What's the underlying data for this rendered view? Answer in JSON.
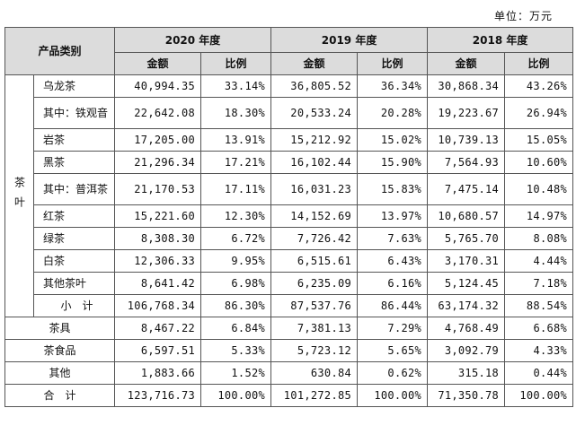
{
  "unit_label": "单位：万元",
  "header": {
    "category": "产品类别",
    "years": [
      "2020 年度",
      "2019 年度",
      "2018 年度"
    ],
    "amount": "金额",
    "ratio": "比例"
  },
  "tea_group_label": "茶叶",
  "tea_rows": [
    {
      "name": "乌龙茶",
      "v": [
        "40,994.35",
        "33.14%",
        "36,805.52",
        "36.34%",
        "30,868.34",
        "43.26%"
      ]
    },
    {
      "name": "其中：铁观音",
      "v": [
        "22,642.08",
        "18.30%",
        "20,533.24",
        "20.28%",
        "19,223.67",
        "26.94%"
      ]
    },
    {
      "name": "岩茶",
      "v": [
        "17,205.00",
        "13.91%",
        "15,212.92",
        "15.02%",
        "10,739.13",
        "15.05%"
      ]
    },
    {
      "name": "黑茶",
      "v": [
        "21,296.34",
        "17.21%",
        "16,102.44",
        "15.90%",
        "7,564.93",
        "10.60%"
      ]
    },
    {
      "name": "其中：普洱茶",
      "v": [
        "21,170.53",
        "17.11%",
        "16,031.23",
        "15.83%",
        "7,475.14",
        "10.48%"
      ]
    },
    {
      "name": "红茶",
      "v": [
        "15,221.60",
        "12.30%",
        "14,152.69",
        "13.97%",
        "10,680.57",
        "14.97%"
      ]
    },
    {
      "name": "绿茶",
      "v": [
        "8,308.30",
        "6.72%",
        "7,726.42",
        "7.63%",
        "5,765.70",
        "8.08%"
      ]
    },
    {
      "name": "白茶",
      "v": [
        "12,306.33",
        "9.95%",
        "6,515.61",
        "6.43%",
        "3,170.31",
        "4.44%"
      ]
    },
    {
      "name": "其他茶叶",
      "v": [
        "8,641.42",
        "6.98%",
        "6,235.09",
        "6.16%",
        "5,124.45",
        "7.18%"
      ]
    },
    {
      "name": "小　计",
      "v": [
        "106,768.34",
        "86.30%",
        "87,537.76",
        "86.44%",
        "63,174.32",
        "88.54%"
      ]
    }
  ],
  "other_rows": [
    {
      "name": "茶具",
      "v": [
        "8,467.22",
        "6.84%",
        "7,381.13",
        "7.29%",
        "4,768.49",
        "6.68%"
      ]
    },
    {
      "name": "茶食品",
      "v": [
        "6,597.51",
        "5.33%",
        "5,723.12",
        "5.65%",
        "3,092.79",
        "4.33%"
      ]
    },
    {
      "name": "其他",
      "v": [
        "1,883.66",
        "1.52%",
        "630.84",
        "0.62%",
        "315.18",
        "0.44%"
      ]
    },
    {
      "name": "合　计",
      "v": [
        "123,716.73",
        "100.00%",
        "101,272.85",
        "100.00%",
        "71,350.78",
        "100.00%"
      ]
    }
  ]
}
